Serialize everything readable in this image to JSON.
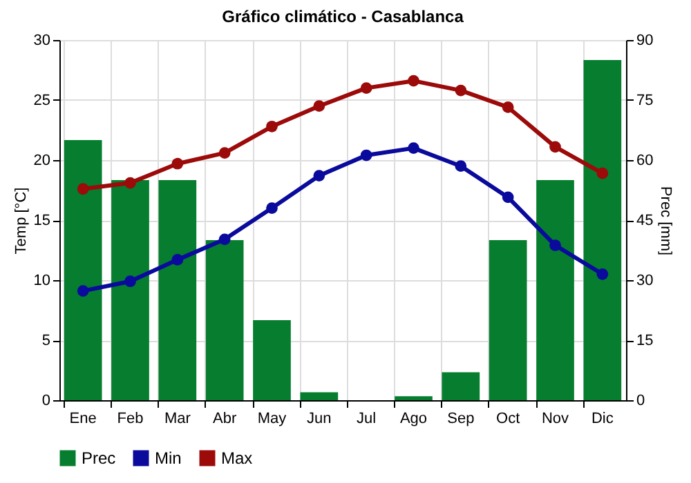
{
  "chart_data": {
    "type": "line",
    "title": "Gráfico climático - Casablanca",
    "categories": [
      "Ene",
      "Feb",
      "Mar",
      "Abr",
      "May",
      "Jun",
      "Jul",
      "Ago",
      "Sep",
      "Oct",
      "Nov",
      "Dic"
    ],
    "series": [
      {
        "name": "Prec",
        "type": "bar",
        "axis": "y2",
        "color": "#067d2f",
        "values": [
          65,
          55,
          55,
          40,
          20,
          2,
          0,
          1,
          7,
          40,
          55,
          85
        ]
      },
      {
        "name": "Min",
        "color": "#0a0a9c",
        "values": [
          9.1,
          9.9,
          11.7,
          13.4,
          16.0,
          18.7,
          20.4,
          21.0,
          19.5,
          16.9,
          12.9,
          10.5
        ]
      },
      {
        "name": "Max",
        "color": "#9c0a0a",
        "values": [
          17.6,
          18.1,
          19.7,
          20.6,
          22.8,
          24.5,
          26.0,
          26.6,
          25.8,
          24.4,
          21.1,
          18.9
        ]
      }
    ],
    "ylabel": "Temp [°C]",
    "y2label": "Prec [mm]",
    "ylim": [
      0,
      30
    ],
    "yticks": [
      0,
      5,
      10,
      15,
      20,
      25,
      30
    ],
    "y2lim": [
      0,
      90
    ],
    "y2ticks": [
      0,
      15,
      30,
      45,
      60,
      75,
      90
    ],
    "grid": true,
    "legend": "bottom",
    "marker": "circle"
  }
}
